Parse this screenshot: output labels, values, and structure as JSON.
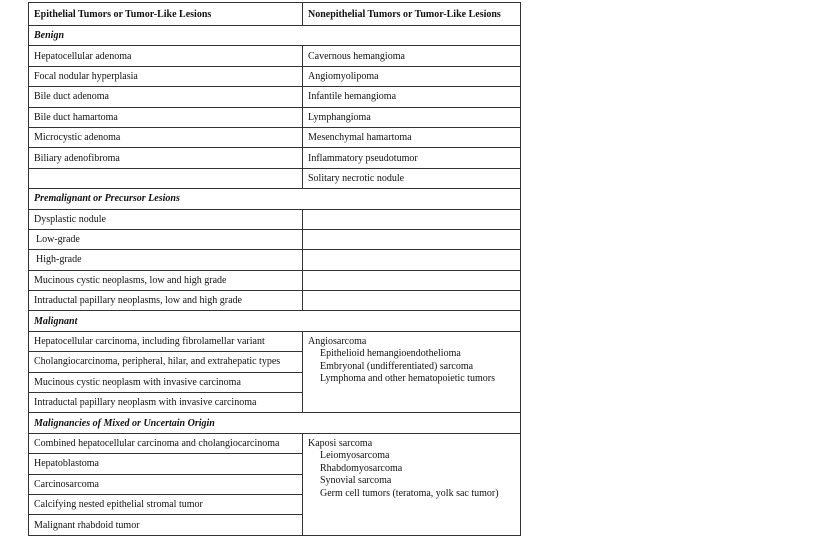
{
  "headers": [
    "Epithelial Tumors or Tumor-Like Lesions",
    "Nonepithelial Tumors or Tumor-Like Lesions"
  ],
  "benign": {
    "title": "Benign",
    "left": [
      "Hepatocellular adenoma",
      "Focal nodular hyperplasia",
      "Bile duct adenoma",
      "Bile duct hamartoma",
      "Microcystic adenoma",
      "Biliary adenofibroma",
      ""
    ],
    "right": [
      "Cavernous hemangioma",
      "Angiomyolipoma",
      "Infantile hemangioma",
      "Lymphangioma",
      "Mesenchymal hamartoma",
      "Inflammatory pseudotumor",
      "Solitary necrotic nodule"
    ]
  },
  "premalignant": {
    "title": "Premalignant or Precursor Lesions",
    "left": [
      "Dysplastic nodule",
      "Low-grade",
      "High-grade",
      "Mucinous cystic neoplasms, low and high grade",
      "Intraductal papillary neoplasms, low and high grade"
    ]
  },
  "malignant": {
    "title": "Malignant",
    "left": [
      "Hepatocellular carcinoma, including fibrolamellar variant",
      "Cholangiocarcinoma, peripheral, hilar, and extrahepatic types",
      "Mucinous cystic neoplasm with invasive carcinoma",
      "Intraductal papillary neoplasm with invasive carcinoma"
    ],
    "right_main": "Angiosarcoma",
    "right_sub": [
      "Epithelioid hemangioendothelioma",
      "Embryonal (undifferentiated) sarcoma",
      "Lymphoma and other hematopoietic tumors"
    ]
  },
  "mixed": {
    "title": "Malignancies of Mixed or Uncertain Origin",
    "left": [
      "Combined hepatocellular carcinoma and cholangiocarcinoma",
      "Hepatoblastoma",
      "Carcinosarcoma",
      "Calcifying nested epithelial stromal tumor",
      "Malignant rhabdoid tumor"
    ],
    "right_main": "Kaposi sarcoma",
    "right_sub": [
      "Leiomyosarcoma",
      "Rhabdomyosarcoma",
      "Synovial sarcoma",
      "Germ cell tumors (teratoma, yolk sac tumor)"
    ]
  }
}
